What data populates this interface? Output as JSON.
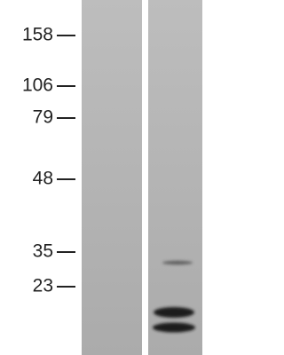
{
  "markers": [
    "158",
    "106",
    "79",
    "48",
    "35",
    "23"
  ]
}
